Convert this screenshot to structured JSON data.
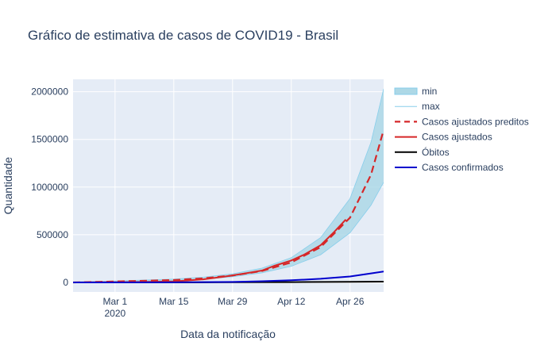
{
  "chart_data": {
    "type": "line",
    "title": "Gráfico de estimativa de casos de COVID19 - Brasil",
    "xlabel": "Data da notificação",
    "ylabel": "Quantidade",
    "x_range": [
      "2020-02-20",
      "2020-05-04"
    ],
    "y_range": [
      -100000,
      2130000
    ],
    "y_ticks": [
      0,
      500000,
      1000000,
      1500000,
      2000000
    ],
    "y_tick_labels": [
      "0",
      "500000",
      "1000000",
      "1500000",
      "2000000"
    ],
    "x_ticks": [
      "2020-03-01",
      "2020-03-15",
      "2020-03-29",
      "2020-04-12",
      "2020-04-26"
    ],
    "x_tick_labels": [
      "Mar 1",
      "Mar 15",
      "Mar 29",
      "Apr 12",
      "Apr 26"
    ],
    "x_tick_sublabel": "2020",
    "grid": true,
    "legend_position": "right",
    "background": "#e5ecf6",
    "series": [
      {
        "name": "min",
        "style": "band_lower",
        "color": "#87ceeb",
        "fill": "#add8e6",
        "points": [
          [
            "2020-02-20",
            0
          ],
          [
            "2020-03-01",
            8000
          ],
          [
            "2020-03-15",
            20000
          ],
          [
            "2020-03-22",
            35000
          ],
          [
            "2020-03-29",
            60000
          ],
          [
            "2020-04-05",
            100000
          ],
          [
            "2020-04-12",
            170000
          ],
          [
            "2020-04-19",
            290000
          ],
          [
            "2020-04-26",
            520000
          ],
          [
            "2020-05-01",
            810000
          ],
          [
            "2020-05-04",
            1050000
          ]
        ]
      },
      {
        "name": "max",
        "style": "band_upper",
        "color": "#87ceeb",
        "points": [
          [
            "2020-02-20",
            5000
          ],
          [
            "2020-03-01",
            15000
          ],
          [
            "2020-03-15",
            35000
          ],
          [
            "2020-03-22",
            55000
          ],
          [
            "2020-03-29",
            90000
          ],
          [
            "2020-04-05",
            150000
          ],
          [
            "2020-04-12",
            260000
          ],
          [
            "2020-04-19",
            470000
          ],
          [
            "2020-04-26",
            880000
          ],
          [
            "2020-05-01",
            1470000
          ],
          [
            "2020-05-04",
            2030000
          ]
        ]
      },
      {
        "name": "Casos ajustados preditos",
        "style": "dash",
        "color": "#d62728",
        "points": [
          [
            "2020-02-20",
            0
          ],
          [
            "2020-03-01",
            10000
          ],
          [
            "2020-03-15",
            25000
          ],
          [
            "2020-03-22",
            42000
          ],
          [
            "2020-03-29",
            72000
          ],
          [
            "2020-04-05",
            120000
          ],
          [
            "2020-04-12",
            210000
          ],
          [
            "2020-04-19",
            370000
          ],
          [
            "2020-04-26",
            680000
          ],
          [
            "2020-05-01",
            1130000
          ],
          [
            "2020-05-04",
            1600000
          ]
        ]
      },
      {
        "name": "Casos ajustados",
        "style": "solid",
        "color": "#d62728",
        "points": [
          [
            "2020-02-20",
            0
          ],
          [
            "2020-03-01",
            2000
          ],
          [
            "2020-03-08",
            5000
          ],
          [
            "2020-03-15",
            10000
          ],
          [
            "2020-03-22",
            32000
          ],
          [
            "2020-03-27",
            60000
          ],
          [
            "2020-04-01",
            95000
          ],
          [
            "2020-04-05",
            125000
          ],
          [
            "2020-04-08",
            175000
          ],
          [
            "2020-04-12",
            230000
          ],
          [
            "2020-04-15",
            290000
          ],
          [
            "2020-04-19",
            390000
          ],
          [
            "2020-04-22",
            520000
          ],
          [
            "2020-04-25",
            660000
          ]
        ]
      },
      {
        "name": "Óbitos",
        "style": "solid",
        "color": "#000000",
        "points": [
          [
            "2020-02-20",
            0
          ],
          [
            "2020-03-15",
            0
          ],
          [
            "2020-03-29",
            1500
          ],
          [
            "2020-04-12",
            3000
          ],
          [
            "2020-04-26",
            6000
          ],
          [
            "2020-05-04",
            8000
          ]
        ]
      },
      {
        "name": "Casos confirmados",
        "style": "solid",
        "color": "#0000cd",
        "points": [
          [
            "2020-02-20",
            0
          ],
          [
            "2020-03-15",
            500
          ],
          [
            "2020-03-29",
            5000
          ],
          [
            "2020-04-05",
            12000
          ],
          [
            "2020-04-12",
            22000
          ],
          [
            "2020-04-19",
            38000
          ],
          [
            "2020-04-26",
            62000
          ],
          [
            "2020-05-01",
            95000
          ],
          [
            "2020-05-04",
            115000
          ]
        ]
      }
    ]
  }
}
